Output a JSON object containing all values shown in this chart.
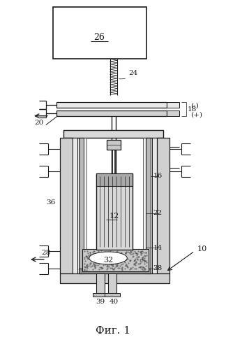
{
  "bg_color": "#ffffff",
  "lc": "#1a1a1a",
  "title": "Фиг. 1"
}
